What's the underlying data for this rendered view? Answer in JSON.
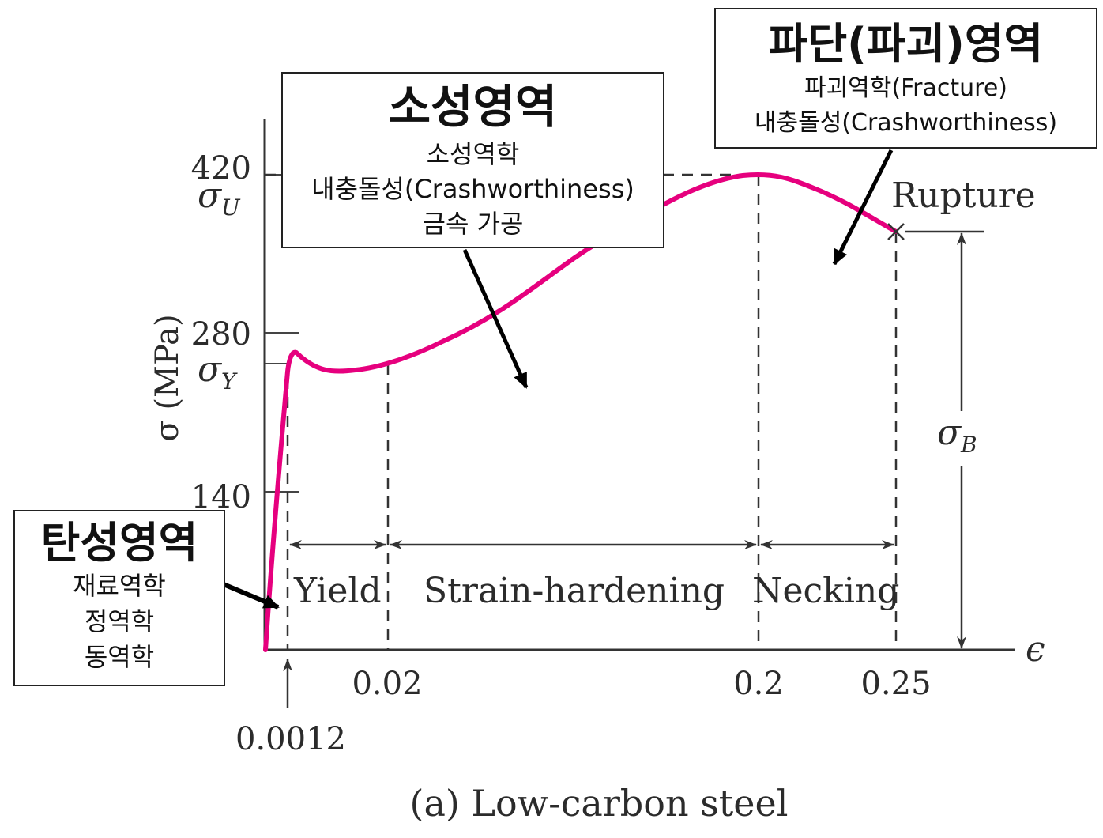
{
  "chart_data": {
    "type": "line",
    "title": "(a) Low-carbon steel",
    "xlabel": "ϵ",
    "ylabel": "σ (MPa)",
    "curve_color": "#e6007e",
    "ylim": [
      0,
      450
    ],
    "xlim": [
      0,
      0.28
    ],
    "y_ticks": [
      "140",
      "280",
      "420"
    ],
    "y_symbols": {
      "yield": {
        "base": "σ",
        "sub": "Y"
      },
      "ultimate": {
        "base": "σ",
        "sub": "U"
      },
      "breaking": {
        "base": "σ",
        "sub": "B"
      }
    },
    "x_ticks": [
      "0.0012",
      "0.02",
      "0.2",
      "0.25"
    ],
    "region_labels": [
      "Yield",
      "Strain-hardening",
      "Necking"
    ],
    "rupture_label": "Rupture",
    "series": [
      {
        "x": [
          0,
          0.0006,
          0.0012,
          0.002,
          0.004,
          0.008,
          0.012,
          0.02,
          0.04,
          0.06,
          0.08,
          0.1,
          0.12,
          0.14,
          0.16,
          0.18,
          0.19,
          0.2,
          0.21,
          0.22,
          0.23,
          0.24,
          0.25
        ],
        "y": [
          0,
          130,
          245,
          258,
          252,
          242,
          240,
          245,
          262,
          288,
          318,
          350,
          378,
          398,
          412,
          420,
          422,
          422,
          419,
          411,
          399,
          386,
          372
        ]
      }
    ],
    "key_points": {
      "sigma_Y": 245,
      "sigma_U": 422,
      "sigma_B": 372,
      "eps_yield": 0.0012,
      "eps_yield_end": 0.02,
      "eps_ultimate": 0.2,
      "eps_rupture": 0.25
    }
  },
  "annotations": {
    "elastic": {
      "title": "탄성영역",
      "lines": [
        "재료역학",
        "정역학",
        "동역학"
      ]
    },
    "plastic": {
      "title": "소성영역",
      "lines": [
        "소성역학",
        "내충돌성(Crashworthiness)",
        "금속 가공"
      ]
    },
    "fracture": {
      "title": "파단(파괴)영역",
      "lines": [
        "파괴역학(Fracture)",
        "내충돌성(Crashworthiness)"
      ]
    }
  }
}
